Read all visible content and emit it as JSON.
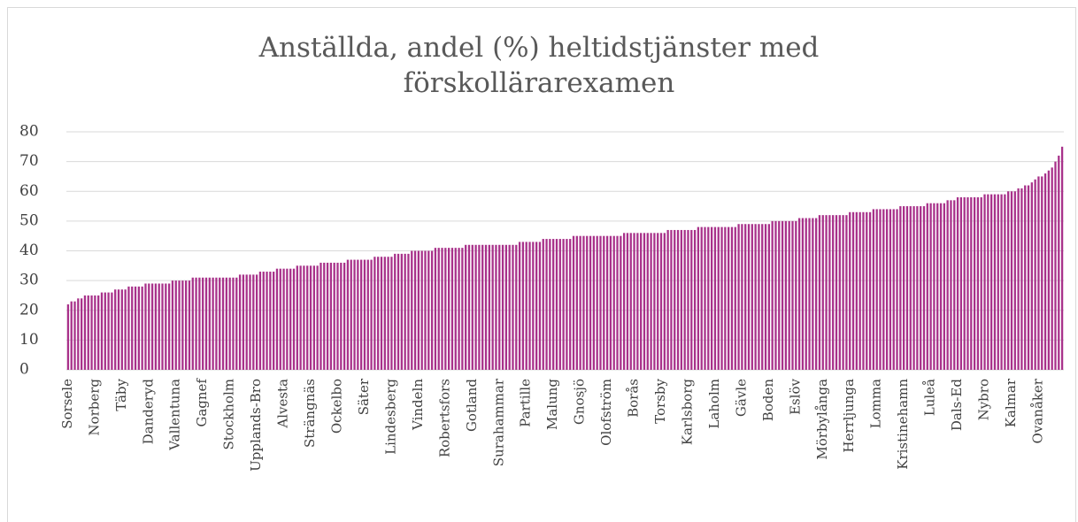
{
  "chart_data": {
    "type": "bar",
    "title": "Anställda, andel (%) heltidstjänster med förskollärarexamen",
    "categories": [
      "Sorsele",
      null,
      null,
      null,
      null,
      null,
      null,
      null,
      "Norberg",
      null,
      null,
      null,
      null,
      null,
      null,
      null,
      "Täby",
      null,
      null,
      null,
      null,
      null,
      null,
      null,
      "Danderyd",
      null,
      null,
      null,
      null,
      null,
      null,
      null,
      "Vallentuna",
      null,
      null,
      null,
      null,
      null,
      null,
      null,
      "Gagnef",
      null,
      null,
      null,
      null,
      null,
      null,
      null,
      "Stockholm",
      null,
      null,
      null,
      null,
      null,
      null,
      null,
      "Upplands-Bro",
      null,
      null,
      null,
      null,
      null,
      null,
      null,
      "Alvesta",
      null,
      null,
      null,
      null,
      null,
      null,
      null,
      "Strängnäs",
      null,
      null,
      null,
      null,
      null,
      null,
      null,
      "Ockelbo",
      null,
      null,
      null,
      null,
      null,
      null,
      null,
      "Säter",
      null,
      null,
      null,
      null,
      null,
      null,
      null,
      "Lindesberg",
      null,
      null,
      null,
      null,
      null,
      null,
      null,
      "Vindeln",
      null,
      null,
      null,
      null,
      null,
      null,
      null,
      "Robertsfors",
      null,
      null,
      null,
      null,
      null,
      null,
      null,
      "Gotland",
      null,
      null,
      null,
      null,
      null,
      null,
      null,
      "Surahammar",
      null,
      null,
      null,
      null,
      null,
      null,
      null,
      "Partille",
      null,
      null,
      null,
      null,
      null,
      null,
      null,
      "Malung",
      null,
      null,
      null,
      null,
      null,
      null,
      null,
      "Gnosjö",
      null,
      null,
      null,
      null,
      null,
      null,
      null,
      "Olofström",
      null,
      null,
      null,
      null,
      null,
      null,
      null,
      "Borås",
      null,
      null,
      null,
      null,
      null,
      null,
      null,
      "Torsby",
      null,
      null,
      null,
      null,
      null,
      null,
      null,
      "Karlsborg",
      null,
      null,
      null,
      null,
      null,
      null,
      null,
      "Laholm",
      null,
      null,
      null,
      null,
      null,
      null,
      null,
      "Gävle",
      null,
      null,
      null,
      null,
      null,
      null,
      null,
      "Boden",
      null,
      null,
      null,
      null,
      null,
      null,
      null,
      "Eslöv",
      null,
      null,
      null,
      null,
      null,
      null,
      null,
      "Mörbylånga",
      null,
      null,
      null,
      null,
      null,
      null,
      null,
      "Herrljunga",
      null,
      null,
      null,
      null,
      null,
      null,
      null,
      "Lomma",
      null,
      null,
      null,
      null,
      null,
      null,
      null,
      "Kristinehamn",
      null,
      null,
      null,
      null,
      null,
      null,
      null,
      "Luleå",
      null,
      null,
      null,
      null,
      null,
      null,
      null,
      "Dals-Ed",
      null,
      null,
      null,
      null,
      null,
      null,
      null,
      "Nybro",
      null,
      null,
      null,
      null,
      null,
      null,
      null,
      "Kalmar",
      null,
      null,
      null,
      null,
      null,
      null,
      null,
      "Ovanåker",
      null,
      null,
      null,
      null,
      null,
      null,
      null
    ],
    "values": [
      22,
      23,
      23,
      24,
      24,
      25,
      25,
      25,
      25,
      25,
      26,
      26,
      26,
      26,
      27,
      27,
      27,
      27,
      28,
      28,
      28,
      28,
      28,
      29,
      29,
      29,
      29,
      29,
      29,
      29,
      29,
      30,
      30,
      30,
      30,
      30,
      30,
      31,
      31,
      31,
      31,
      31,
      31,
      31,
      31,
      31,
      31,
      31,
      31,
      31,
      31,
      32,
      32,
      32,
      32,
      32,
      32,
      33,
      33,
      33,
      33,
      33,
      34,
      34,
      34,
      34,
      34,
      34,
      35,
      35,
      35,
      35,
      35,
      35,
      35,
      36,
      36,
      36,
      36,
      36,
      36,
      36,
      36,
      37,
      37,
      37,
      37,
      37,
      37,
      37,
      37,
      38,
      38,
      38,
      38,
      38,
      38,
      39,
      39,
      39,
      39,
      39,
      40,
      40,
      40,
      40,
      40,
      40,
      40,
      41,
      41,
      41,
      41,
      41,
      41,
      41,
      41,
      41,
      42,
      42,
      42,
      42,
      42,
      42,
      42,
      42,
      42,
      42,
      42,
      42,
      42,
      42,
      42,
      42,
      43,
      43,
      43,
      43,
      43,
      43,
      43,
      44,
      44,
      44,
      44,
      44,
      44,
      44,
      44,
      44,
      45,
      45,
      45,
      45,
      45,
      45,
      45,
      45,
      45,
      45,
      45,
      45,
      45,
      45,
      45,
      46,
      46,
      46,
      46,
      46,
      46,
      46,
      46,
      46,
      46,
      46,
      46,
      46,
      47,
      47,
      47,
      47,
      47,
      47,
      47,
      47,
      47,
      48,
      48,
      48,
      48,
      48,
      48,
      48,
      48,
      48,
      48,
      48,
      48,
      49,
      49,
      49,
      49,
      49,
      49,
      49,
      49,
      49,
      49,
      50,
      50,
      50,
      50,
      50,
      50,
      50,
      50,
      51,
      51,
      51,
      51,
      51,
      51,
      52,
      52,
      52,
      52,
      52,
      52,
      52,
      52,
      52,
      53,
      53,
      53,
      53,
      53,
      53,
      53,
      54,
      54,
      54,
      54,
      54,
      54,
      54,
      54,
      55,
      55,
      55,
      55,
      55,
      55,
      55,
      55,
      56,
      56,
      56,
      56,
      56,
      56,
      57,
      57,
      57,
      58,
      58,
      58,
      58,
      58,
      58,
      58,
      58,
      59,
      59,
      59,
      59,
      59,
      59,
      59,
      60,
      60,
      60,
      61,
      61,
      62,
      62,
      63,
      64,
      65,
      65,
      66,
      67,
      68,
      70,
      72,
      75
    ],
    "color": "#a8318a",
    "ylim": [
      0,
      80
    ],
    "yticks": [
      0,
      10,
      20,
      30,
      40,
      50,
      60,
      70,
      80
    ],
    "grid": true
  }
}
